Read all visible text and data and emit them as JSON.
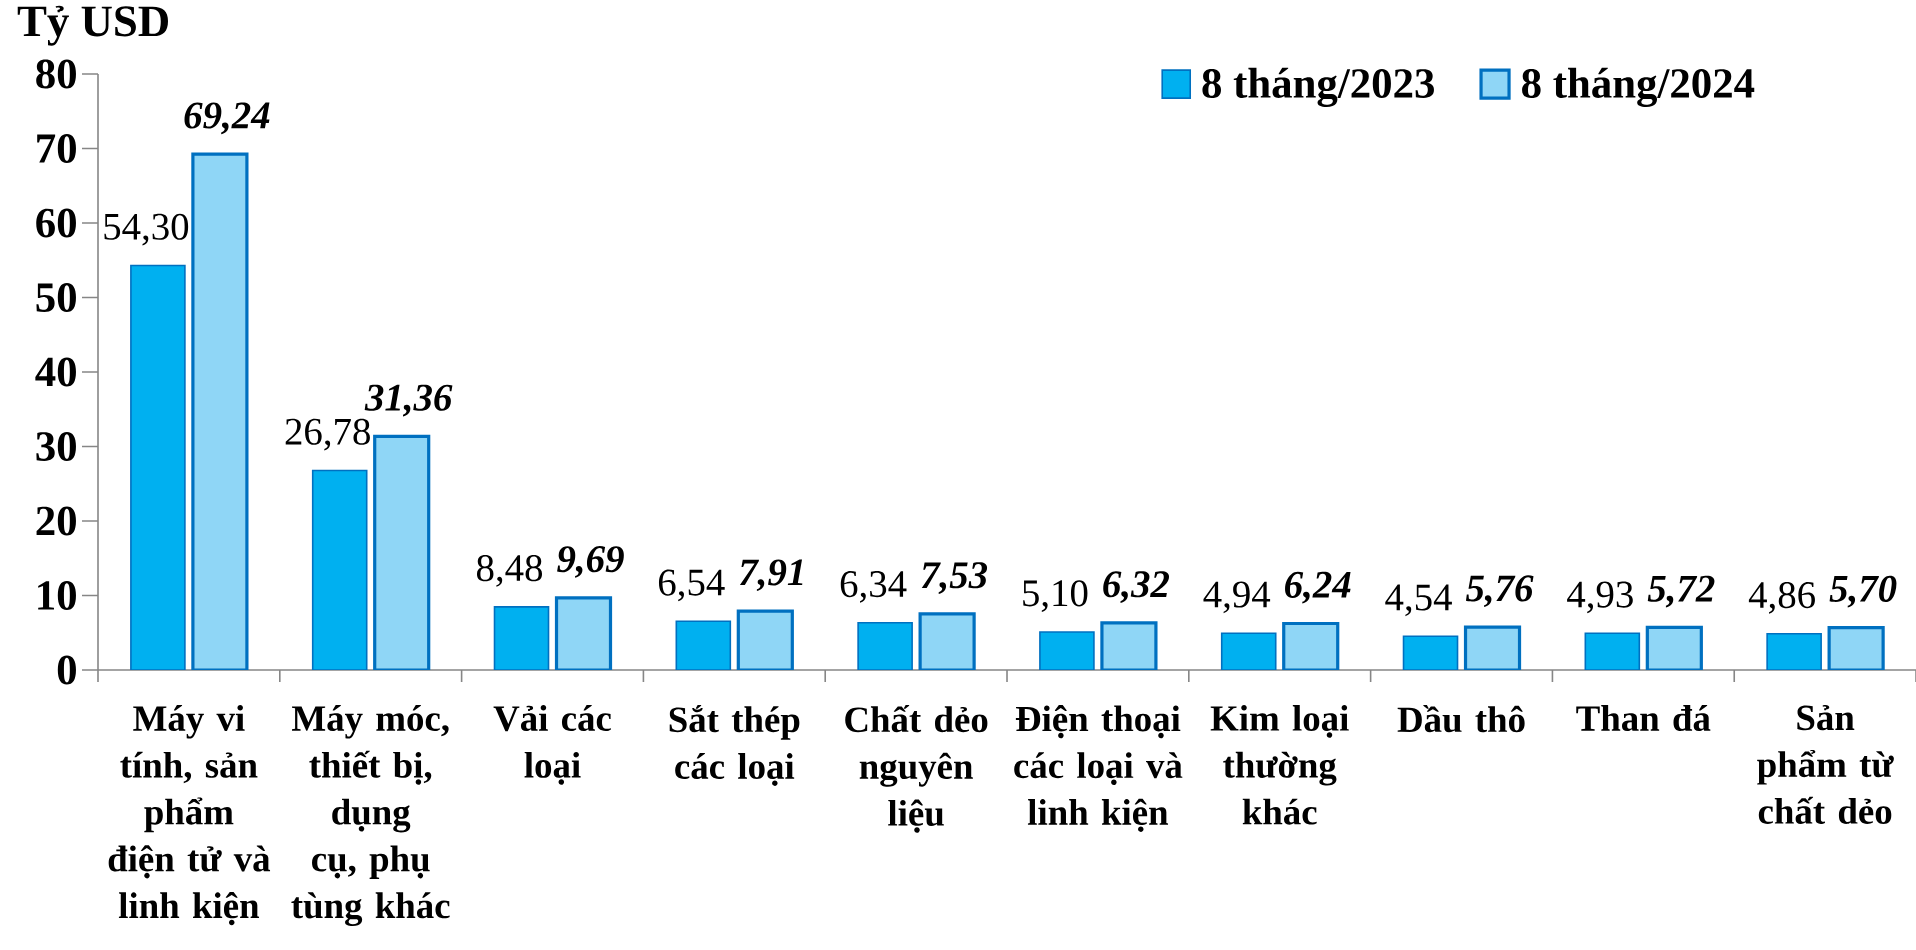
{
  "chart_data": {
    "type": "bar",
    "ylabel": "Tỷ USD",
    "categories": [
      "Máy vi tính, sản phẩm điện tử và linh kiện",
      "Máy móc, thiết bị, dụng cụ, phụ tùng khác",
      "Vải các loại",
      "Sắt thép các loại",
      "Chất dẻo nguyên liệu",
      "Điện thoại các loại và linh kiện",
      "Kim loại thường khác",
      "Dầu thô",
      "Than đá",
      "Sản phẩm từ chất dẻo"
    ],
    "series": [
      {
        "name": "8 tháng/2023",
        "color": "#00b0f0",
        "values": [
          54.3,
          26.78,
          8.48,
          6.54,
          6.34,
          5.1,
          4.94,
          4.54,
          4.93,
          4.86
        ],
        "value_labels": [
          "54,30",
          "26,78",
          "8,48",
          "6,54",
          "6,34",
          "5,10",
          "4,94",
          "4,54",
          "4,93",
          "4,86"
        ]
      },
      {
        "name": "8 tháng/2024",
        "color": "#8fd6f6",
        "values": [
          69.24,
          31.36,
          9.69,
          7.91,
          7.53,
          6.32,
          6.24,
          5.76,
          5.72,
          5.7
        ],
        "value_labels": [
          "69,24",
          "31,36",
          "9,69",
          "7,91",
          "7,53",
          "6,32",
          "6,24",
          "5,76",
          "5,72",
          "5,70"
        ]
      }
    ],
    "ylim": [
      0,
      80
    ],
    "yticks": [
      0,
      10,
      20,
      30,
      40,
      50,
      60,
      70,
      80
    ],
    "legend": "top right"
  }
}
